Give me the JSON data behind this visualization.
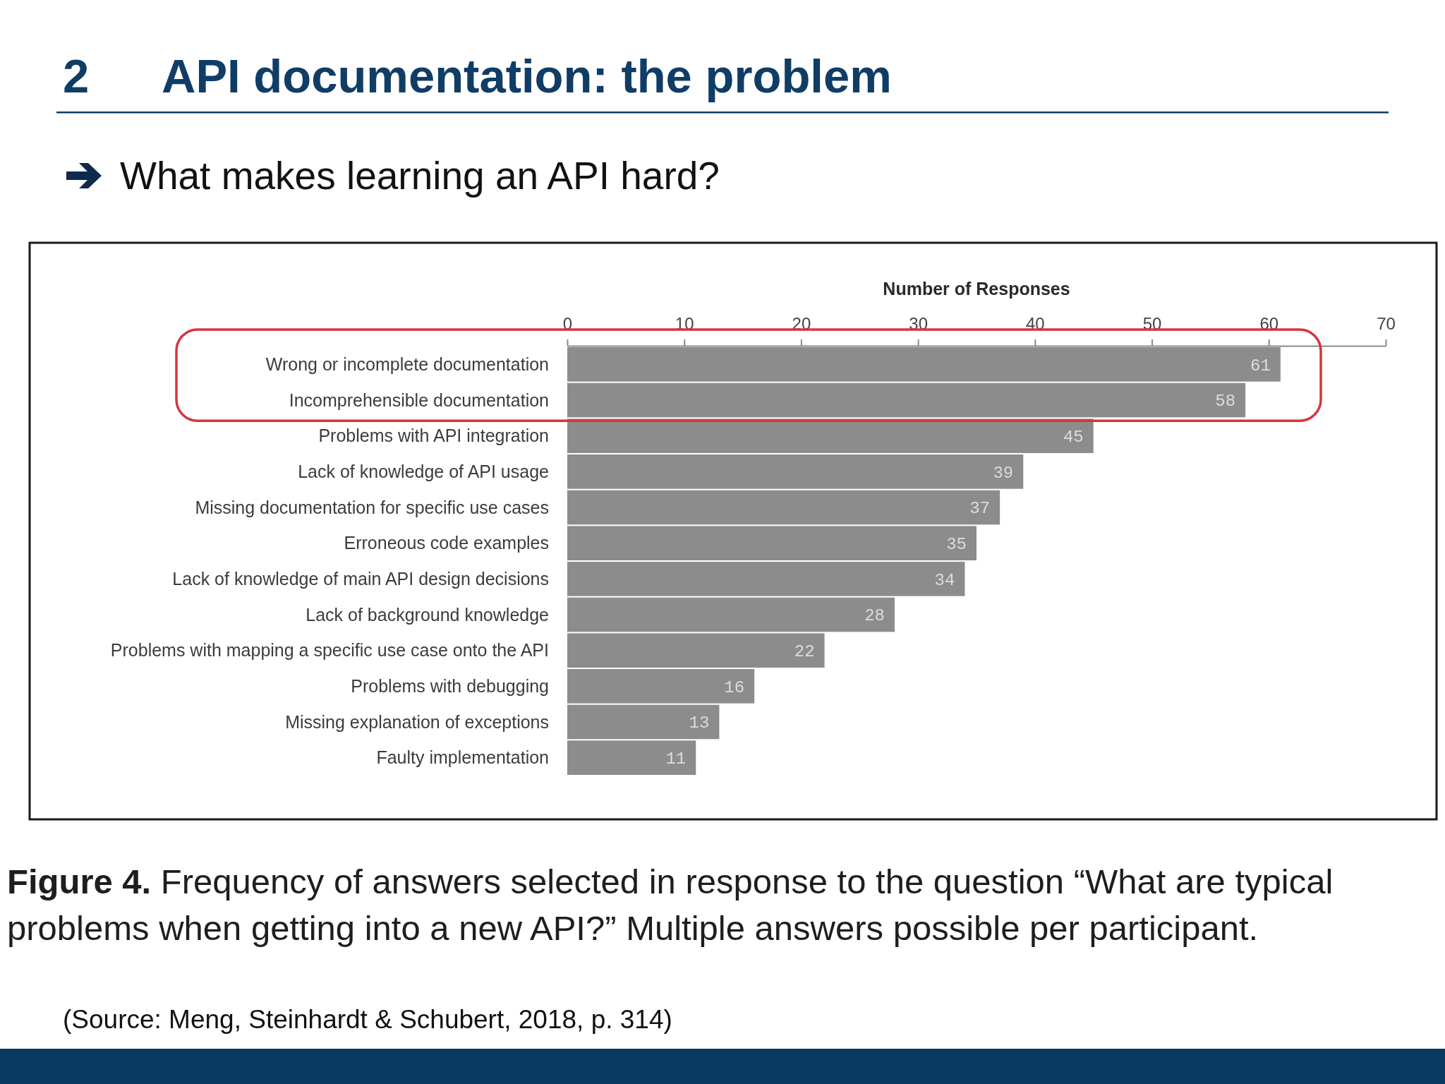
{
  "chart_data": {
    "type": "bar",
    "orientation": "horizontal",
    "title": "2 API documentation: the problem",
    "subtitle": "What makes learning an API hard?",
    "xlabel": "Number of Responses",
    "categories": [
      "Wrong or incomplete documentation",
      "Incomprehensible documentation",
      "Problems with API integration",
      "Lack of knowledge of API usage",
      "Missing documentation for specific use cases",
      "Erroneous code examples",
      "Lack of knowledge of main API design decisions",
      "Lack of background knowledge",
      "Problems with mapping a specific use case onto the API",
      "Problems with debugging",
      "Missing explanation of exceptions",
      "Faulty implementation"
    ],
    "values": [
      61,
      58,
      45,
      39,
      37,
      35,
      34,
      28,
      22,
      16,
      13,
      11
    ],
    "color": "#8c8c8c",
    "xlim": [
      0,
      70
    ],
    "xticks": [
      0,
      10,
      20,
      30,
      40,
      50,
      60,
      70
    ],
    "data_labels": true,
    "annotations": [
      "Figure 4. Frequency of answers selected in response to the question “What are typical problems when getting into a new API?” Multiple answers possible per participant.",
      "(Source: Meng, Steinhardt & Schubert, 2018, p. 314)"
    ]
  }
}
